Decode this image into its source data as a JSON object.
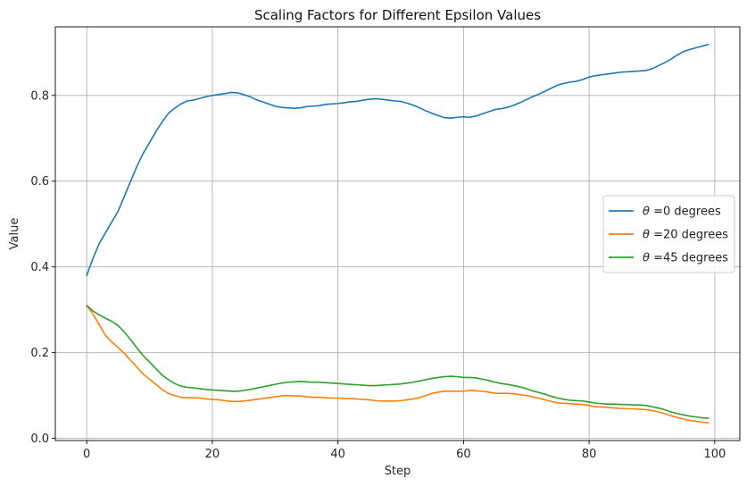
{
  "chart_data": {
    "type": "line",
    "title": "Scaling Factors for Different Epsilon Values",
    "xlabel": "Step",
    "ylabel": "Value",
    "xlim": [
      -5,
      104
    ],
    "ylim": [
      -0.005,
      0.96
    ],
    "grid": true,
    "legend_position": "center-right",
    "xticks": [
      0,
      20,
      40,
      60,
      80,
      100
    ],
    "xtick_labels": [
      "0",
      "20",
      "40",
      "60",
      "80",
      "100"
    ],
    "yticks": [
      0.0,
      0.2,
      0.4,
      0.6,
      0.8
    ],
    "ytick_labels": [
      "0.0",
      "0.2",
      "0.4",
      "0.6",
      "0.8"
    ],
    "series": [
      {
        "name_prefix": "θ",
        "name_suffix": " =0 degrees",
        "color": "#1f77b4",
        "points": [
          [
            0,
            0.38
          ],
          [
            1,
            0.42
          ],
          [
            2,
            0.455
          ],
          [
            3,
            0.48
          ],
          [
            4,
            0.505
          ],
          [
            5,
            0.53
          ],
          [
            6,
            0.565
          ],
          [
            7,
            0.6
          ],
          [
            8,
            0.635
          ],
          [
            9,
            0.665
          ],
          [
            10,
            0.69
          ],
          [
            11,
            0.715
          ],
          [
            12,
            0.738
          ],
          [
            13,
            0.758
          ],
          [
            14,
            0.77
          ],
          [
            15,
            0.78
          ],
          [
            16,
            0.787
          ],
          [
            17,
            0.789
          ],
          [
            18,
            0.793
          ],
          [
            19,
            0.797
          ],
          [
            20,
            0.8
          ],
          [
            21,
            0.802
          ],
          [
            22,
            0.804
          ],
          [
            23,
            0.807
          ],
          [
            24,
            0.806
          ],
          [
            25,
            0.802
          ],
          [
            26,
            0.797
          ],
          [
            27,
            0.79
          ],
          [
            28,
            0.785
          ],
          [
            29,
            0.78
          ],
          [
            30,
            0.775
          ],
          [
            31,
            0.772
          ],
          [
            32,
            0.771
          ],
          [
            33,
            0.77
          ],
          [
            34,
            0.771
          ],
          [
            35,
            0.774
          ],
          [
            36,
            0.775
          ],
          [
            37,
            0.776
          ],
          [
            38,
            0.779
          ],
          [
            39,
            0.78
          ],
          [
            40,
            0.781
          ],
          [
            41,
            0.783
          ],
          [
            42,
            0.785
          ],
          [
            43,
            0.786
          ],
          [
            44,
            0.789
          ],
          [
            45,
            0.791
          ],
          [
            46,
            0.792
          ],
          [
            47,
            0.791
          ],
          [
            48,
            0.789
          ],
          [
            49,
            0.787
          ],
          [
            50,
            0.786
          ],
          [
            51,
            0.782
          ],
          [
            52,
            0.777
          ],
          [
            53,
            0.771
          ],
          [
            54,
            0.764
          ],
          [
            55,
            0.758
          ],
          [
            56,
            0.753
          ],
          [
            57,
            0.748
          ],
          [
            58,
            0.747
          ],
          [
            59,
            0.749
          ],
          [
            60,
            0.75
          ],
          [
            61,
            0.749
          ],
          [
            62,
            0.752
          ],
          [
            63,
            0.757
          ],
          [
            64,
            0.762
          ],
          [
            65,
            0.767
          ],
          [
            66,
            0.769
          ],
          [
            67,
            0.772
          ],
          [
            68,
            0.777
          ],
          [
            69,
            0.783
          ],
          [
            70,
            0.79
          ],
          [
            71,
            0.797
          ],
          [
            72,
            0.803
          ],
          [
            73,
            0.81
          ],
          [
            74,
            0.817
          ],
          [
            75,
            0.824
          ],
          [
            76,
            0.828
          ],
          [
            77,
            0.831
          ],
          [
            78,
            0.833
          ],
          [
            79,
            0.837
          ],
          [
            80,
            0.843
          ],
          [
            81,
            0.846
          ],
          [
            82,
            0.848
          ],
          [
            83,
            0.85
          ],
          [
            84,
            0.852
          ],
          [
            85,
            0.854
          ],
          [
            86,
            0.855
          ],
          [
            87,
            0.856
          ],
          [
            88,
            0.857
          ],
          [
            89,
            0.858
          ],
          [
            90,
            0.862
          ],
          [
            91,
            0.869
          ],
          [
            92,
            0.876
          ],
          [
            93,
            0.884
          ],
          [
            94,
            0.894
          ],
          [
            95,
            0.902
          ],
          [
            96,
            0.907
          ],
          [
            97,
            0.911
          ],
          [
            98,
            0.915
          ],
          [
            99,
            0.919
          ]
        ]
      },
      {
        "name_prefix": "θ",
        "name_suffix": " =20 degrees",
        "color": "#ff7f0e",
        "points": [
          [
            0,
            0.31
          ],
          [
            1,
            0.29
          ],
          [
            2,
            0.265
          ],
          [
            3,
            0.24
          ],
          [
            4,
            0.225
          ],
          [
            5,
            0.212
          ],
          [
            6,
            0.198
          ],
          [
            7,
            0.182
          ],
          [
            8,
            0.166
          ],
          [
            9,
            0.15
          ],
          [
            10,
            0.138
          ],
          [
            11,
            0.126
          ],
          [
            12,
            0.114
          ],
          [
            13,
            0.105
          ],
          [
            14,
            0.1
          ],
          [
            15,
            0.096
          ],
          [
            16,
            0.095
          ],
          [
            17,
            0.095
          ],
          [
            18,
            0.094
          ],
          [
            19,
            0.092
          ],
          [
            20,
            0.091
          ],
          [
            21,
            0.09
          ],
          [
            22,
            0.088
          ],
          [
            23,
            0.086
          ],
          [
            24,
            0.086
          ],
          [
            25,
            0.087
          ],
          [
            26,
            0.089
          ],
          [
            27,
            0.091
          ],
          [
            28,
            0.093
          ],
          [
            29,
            0.095
          ],
          [
            30,
            0.097
          ],
          [
            31,
            0.099
          ],
          [
            32,
            0.1
          ],
          [
            33,
            0.099
          ],
          [
            34,
            0.099
          ],
          [
            35,
            0.097
          ],
          [
            36,
            0.096
          ],
          [
            37,
            0.096
          ],
          [
            38,
            0.095
          ],
          [
            39,
            0.094
          ],
          [
            40,
            0.094
          ],
          [
            41,
            0.093
          ],
          [
            42,
            0.093
          ],
          [
            43,
            0.092
          ],
          [
            44,
            0.091
          ],
          [
            45,
            0.09
          ],
          [
            46,
            0.088
          ],
          [
            47,
            0.087
          ],
          [
            48,
            0.087
          ],
          [
            49,
            0.087
          ],
          [
            50,
            0.088
          ],
          [
            51,
            0.09
          ],
          [
            52,
            0.092
          ],
          [
            53,
            0.095
          ],
          [
            54,
            0.1
          ],
          [
            55,
            0.105
          ],
          [
            56,
            0.108
          ],
          [
            57,
            0.11
          ],
          [
            58,
            0.11
          ],
          [
            59,
            0.11
          ],
          [
            60,
            0.11
          ],
          [
            61,
            0.112
          ],
          [
            62,
            0.111
          ],
          [
            63,
            0.11
          ],
          [
            64,
            0.108
          ],
          [
            65,
            0.105
          ],
          [
            66,
            0.105
          ],
          [
            67,
            0.105
          ],
          [
            68,
            0.104
          ],
          [
            69,
            0.102
          ],
          [
            70,
            0.1
          ],
          [
            71,
            0.097
          ],
          [
            72,
            0.094
          ],
          [
            73,
            0.09
          ],
          [
            74,
            0.086
          ],
          [
            75,
            0.083
          ],
          [
            76,
            0.082
          ],
          [
            77,
            0.081
          ],
          [
            78,
            0.08
          ],
          [
            79,
            0.079
          ],
          [
            80,
            0.077
          ],
          [
            81,
            0.074
          ],
          [
            82,
            0.073
          ],
          [
            83,
            0.072
          ],
          [
            84,
            0.071
          ],
          [
            85,
            0.07
          ],
          [
            86,
            0.069
          ],
          [
            87,
            0.069
          ],
          [
            88,
            0.068
          ],
          [
            89,
            0.067
          ],
          [
            90,
            0.065
          ],
          [
            91,
            0.062
          ],
          [
            92,
            0.058
          ],
          [
            93,
            0.053
          ],
          [
            94,
            0.049
          ],
          [
            95,
            0.045
          ],
          [
            96,
            0.042
          ],
          [
            97,
            0.04
          ],
          [
            98,
            0.038
          ],
          [
            99,
            0.036
          ]
        ]
      },
      {
        "name_prefix": "θ",
        "name_suffix": " =45 degrees",
        "color": "#2ca02c",
        "points": [
          [
            0,
            0.31
          ],
          [
            1,
            0.297
          ],
          [
            2,
            0.288
          ],
          [
            3,
            0.28
          ],
          [
            4,
            0.273
          ],
          [
            5,
            0.263
          ],
          [
            6,
            0.248
          ],
          [
            7,
            0.23
          ],
          [
            8,
            0.211
          ],
          [
            9,
            0.193
          ],
          [
            10,
            0.178
          ],
          [
            11,
            0.163
          ],
          [
            12,
            0.148
          ],
          [
            13,
            0.137
          ],
          [
            14,
            0.128
          ],
          [
            15,
            0.122
          ],
          [
            16,
            0.119
          ],
          [
            17,
            0.118
          ],
          [
            18,
            0.116
          ],
          [
            19,
            0.114
          ],
          [
            20,
            0.113
          ],
          [
            21,
            0.112
          ],
          [
            22,
            0.111
          ],
          [
            23,
            0.11
          ],
          [
            24,
            0.11
          ],
          [
            25,
            0.112
          ],
          [
            26,
            0.114
          ],
          [
            27,
            0.117
          ],
          [
            28,
            0.12
          ],
          [
            29,
            0.123
          ],
          [
            30,
            0.126
          ],
          [
            31,
            0.129
          ],
          [
            32,
            0.131
          ],
          [
            33,
            0.132
          ],
          [
            34,
            0.133
          ],
          [
            35,
            0.132
          ],
          [
            36,
            0.131
          ],
          [
            37,
            0.131
          ],
          [
            38,
            0.13
          ],
          [
            39,
            0.129
          ],
          [
            40,
            0.128
          ],
          [
            41,
            0.127
          ],
          [
            42,
            0.126
          ],
          [
            43,
            0.125
          ],
          [
            44,
            0.124
          ],
          [
            45,
            0.123
          ],
          [
            46,
            0.123
          ],
          [
            47,
            0.124
          ],
          [
            48,
            0.125
          ],
          [
            49,
            0.126
          ],
          [
            50,
            0.127
          ],
          [
            51,
            0.129
          ],
          [
            52,
            0.131
          ],
          [
            53,
            0.134
          ],
          [
            54,
            0.137
          ],
          [
            55,
            0.14
          ],
          [
            56,
            0.142
          ],
          [
            57,
            0.144
          ],
          [
            58,
            0.145
          ],
          [
            59,
            0.144
          ],
          [
            60,
            0.142
          ],
          [
            61,
            0.142
          ],
          [
            62,
            0.141
          ],
          [
            63,
            0.138
          ],
          [
            64,
            0.135
          ],
          [
            65,
            0.131
          ],
          [
            66,
            0.128
          ],
          [
            67,
            0.126
          ],
          [
            68,
            0.123
          ],
          [
            69,
            0.12
          ],
          [
            70,
            0.116
          ],
          [
            71,
            0.111
          ],
          [
            72,
            0.107
          ],
          [
            73,
            0.103
          ],
          [
            74,
            0.098
          ],
          [
            75,
            0.094
          ],
          [
            76,
            0.091
          ],
          [
            77,
            0.089
          ],
          [
            78,
            0.088
          ],
          [
            79,
            0.087
          ],
          [
            80,
            0.085
          ],
          [
            81,
            0.082
          ],
          [
            82,
            0.081
          ],
          [
            83,
            0.08
          ],
          [
            84,
            0.08
          ],
          [
            85,
            0.079
          ],
          [
            86,
            0.079
          ],
          [
            87,
            0.078
          ],
          [
            88,
            0.078
          ],
          [
            89,
            0.077
          ],
          [
            90,
            0.074
          ],
          [
            91,
            0.071
          ],
          [
            92,
            0.067
          ],
          [
            93,
            0.062
          ],
          [
            94,
            0.058
          ],
          [
            95,
            0.055
          ],
          [
            96,
            0.052
          ],
          [
            97,
            0.05
          ],
          [
            98,
            0.048
          ],
          [
            99,
            0.047
          ]
        ]
      }
    ]
  }
}
